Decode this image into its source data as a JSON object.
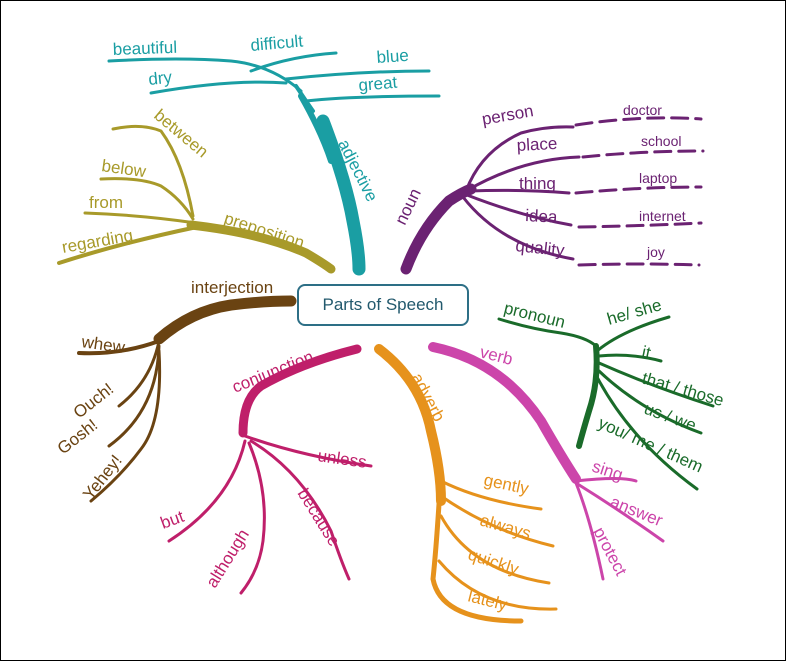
{
  "center": {
    "label": "Parts of Speech"
  },
  "colors": {
    "adjective": "#1a9ea3",
    "noun": "#6b2272",
    "preposition": "#a89a2a",
    "interjection": "#6a4312",
    "pronoun": "#1a6b2a",
    "verb": "#cc45aa",
    "adverb": "#e6921c",
    "conjunction": "#bf1f6a"
  },
  "branches": {
    "adjective": {
      "label": "adjective",
      "words": [
        "beautiful",
        "difficult",
        "blue",
        "dry",
        "great"
      ]
    },
    "noun": {
      "label": "noun",
      "words": [
        "person",
        "place",
        "thing",
        "idea",
        "quality"
      ],
      "examples": [
        "doctor",
        "school",
        "laptop",
        "internet",
        "joy"
      ]
    },
    "preposition": {
      "label": "preposition",
      "words": [
        "between",
        "below",
        "from",
        "regarding"
      ]
    },
    "interjection": {
      "label": "interjection",
      "words": [
        "whew",
        "Ouch!",
        "Gosh!",
        "Yehey!"
      ]
    },
    "pronoun": {
      "label": "pronoun",
      "words": [
        "he/ she",
        "it",
        "that / those",
        "us / we",
        "you/ me / them"
      ]
    },
    "conjunction": {
      "label": "conjunction",
      "words": [
        "unless",
        "because",
        "although",
        "but"
      ]
    },
    "adverb": {
      "label": "adverb",
      "words": [
        "gently",
        "always",
        "quickly",
        "lately"
      ]
    },
    "verb": {
      "label": "verb",
      "words": [
        "sing",
        "answer",
        "protect"
      ]
    }
  }
}
